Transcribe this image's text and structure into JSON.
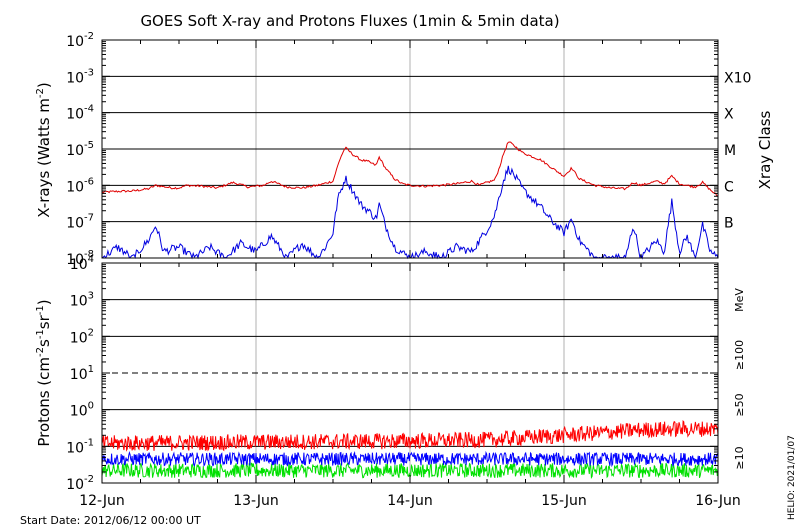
{
  "title": "GOES Soft X-ray and Protons Fluxes   (1min & 5min data)",
  "start_date": "Start Date: 2012/06/12 00:00 UT",
  "credit": "HELIO: 2021/01/07",
  "colors": {
    "xray_long": "#e00000",
    "xray_short": "#0000e0",
    "proton_10": "#ff0000",
    "proton_50": "#0000ff",
    "proton_100": "#00e000",
    "grid_vertical": "#b0b0b0",
    "grid_horizontal": "#000000"
  },
  "chart_data": [
    {
      "type": "line",
      "panel": "xray",
      "ylabel": "X-rays (Watts m^-2)",
      "yscale": "log",
      "ylim": [
        1e-08,
        0.01
      ],
      "y_ticks": [
        {
          "base": "10",
          "exp": "-8"
        },
        {
          "base": "10",
          "exp": "-7"
        },
        {
          "base": "10",
          "exp": "-6"
        },
        {
          "base": "10",
          "exp": "-5"
        },
        {
          "base": "10",
          "exp": "-4"
        },
        {
          "base": "10",
          "exp": "-3"
        },
        {
          "base": "10",
          "exp": "-2"
        }
      ],
      "right_axis_title": "Xray Class",
      "right_labels": [
        {
          "label": "B",
          "value": 1e-07
        },
        {
          "label": "C",
          "value": 1e-06
        },
        {
          "label": "M",
          "value": 1e-05
        },
        {
          "label": "X",
          "value": 0.0001
        },
        {
          "label": "X10",
          "value": 0.001
        }
      ],
      "x_categories": [
        "12-Jun",
        "13-Jun",
        "14-Jun",
        "15-Jun",
        "16-Jun"
      ],
      "x_unit": "day offset from 2012-06-12 00:00 UT",
      "series": [
        {
          "key": "long",
          "points": [
            [
              0.0,
              6.5e-07
            ],
            [
              0.1,
              6.8e-07
            ],
            [
              0.2,
              7e-07
            ],
            [
              0.3,
              8e-07
            ],
            [
              0.35,
              1e-06
            ],
            [
              0.45,
              8.5e-07
            ],
            [
              0.5,
              8.5e-07
            ],
            [
              0.55,
              1e-06
            ],
            [
              0.65,
              9.5e-07
            ],
            [
              0.75,
              8.5e-07
            ],
            [
              0.85,
              1.2e-06
            ],
            [
              0.95,
              9e-07
            ],
            [
              1.05,
              1e-06
            ],
            [
              1.1,
              1.3e-06
            ],
            [
              1.2,
              9e-07
            ],
            [
              1.3,
              8.5e-07
            ],
            [
              1.4,
              1e-06
            ],
            [
              1.5,
              1.3e-06
            ],
            [
              1.52,
              2.5e-06
            ],
            [
              1.55,
              6e-06
            ],
            [
              1.58,
              1.1e-05
            ],
            [
              1.63,
              7e-06
            ],
            [
              1.68,
              5e-06
            ],
            [
              1.73,
              4.5e-06
            ],
            [
              1.78,
              3.5e-06
            ],
            [
              1.8,
              6e-06
            ],
            [
              1.84,
              3e-06
            ],
            [
              1.9,
              1.5e-06
            ],
            [
              1.95,
              1.1e-06
            ],
            [
              2.0,
              1e-06
            ],
            [
              2.1,
              9.5e-07
            ],
            [
              2.2,
              1e-06
            ],
            [
              2.3,
              1.1e-06
            ],
            [
              2.4,
              1.3e-06
            ],
            [
              2.45,
              1e-06
            ],
            [
              2.5,
              1.2e-06
            ],
            [
              2.55,
              1.4e-06
            ],
            [
              2.58,
              3e-06
            ],
            [
              2.61,
              8e-06
            ],
            [
              2.64,
              1.6e-05
            ],
            [
              2.68,
              1.2e-05
            ],
            [
              2.73,
              8e-06
            ],
            [
              2.8,
              6e-06
            ],
            [
              2.85,
              5e-06
            ],
            [
              2.9,
              3.5e-06
            ],
            [
              2.95,
              2.5e-06
            ],
            [
              3.0,
              1.8e-06
            ],
            [
              3.05,
              3e-06
            ],
            [
              3.1,
              1.5e-06
            ],
            [
              3.2,
              1e-06
            ],
            [
              3.3,
              8.5e-07
            ],
            [
              3.4,
              8e-07
            ],
            [
              3.45,
              1.2e-06
            ],
            [
              3.5,
              1e-06
            ],
            [
              3.6,
              1.3e-06
            ],
            [
              3.65,
              1.1e-06
            ],
            [
              3.7,
              1.8e-06
            ],
            [
              3.75,
              1.1e-06
            ],
            [
              3.8,
              1e-06
            ],
            [
              3.85,
              9e-07
            ],
            [
              3.9,
              1.2e-06
            ],
            [
              3.95,
              7.5e-07
            ],
            [
              4.0,
              5e-07
            ]
          ]
        },
        {
          "key": "short",
          "points": [
            [
              0.0,
              1e-08
            ],
            [
              0.1,
              2e-08
            ],
            [
              0.2,
              1e-08
            ],
            [
              0.3,
              3e-08
            ],
            [
              0.35,
              8e-08
            ],
            [
              0.4,
              1.5e-08
            ],
            [
              0.5,
              2e-08
            ],
            [
              0.6,
              1e-08
            ],
            [
              0.7,
              2e-08
            ],
            [
              0.8,
              1e-08
            ],
            [
              0.9,
              2.5e-08
            ],
            [
              1.0,
              1.5e-08
            ],
            [
              1.1,
              4e-08
            ],
            [
              1.2,
              1e-08
            ],
            [
              1.3,
              2.5e-08
            ],
            [
              1.4,
              1e-08
            ],
            [
              1.45,
              2e-08
            ],
            [
              1.5,
              5e-08
            ],
            [
              1.53,
              4e-07
            ],
            [
              1.56,
              9e-07
            ],
            [
              1.58,
              1.6e-06
            ],
            [
              1.63,
              7e-07
            ],
            [
              1.68,
              3e-07
            ],
            [
              1.73,
              2e-07
            ],
            [
              1.78,
              1.2e-07
            ],
            [
              1.8,
              3e-07
            ],
            [
              1.84,
              8e-08
            ],
            [
              1.9,
              2e-08
            ],
            [
              2.0,
              1e-08
            ],
            [
              2.1,
              1.5e-08
            ],
            [
              2.2,
              1e-08
            ],
            [
              2.3,
              2e-08
            ],
            [
              2.4,
              1.5e-08
            ],
            [
              2.5,
              6e-08
            ],
            [
              2.55,
              1.5e-07
            ],
            [
              2.58,
              5e-07
            ],
            [
              2.61,
              1.5e-06
            ],
            [
              2.64,
              3e-06
            ],
            [
              2.68,
              1.8e-06
            ],
            [
              2.73,
              8e-07
            ],
            [
              2.8,
              4e-07
            ],
            [
              2.85,
              2.5e-07
            ],
            [
              2.9,
              1.3e-07
            ],
            [
              2.95,
              8e-08
            ],
            [
              3.0,
              5e-08
            ],
            [
              3.05,
              1.2e-07
            ],
            [
              3.1,
              3e-08
            ],
            [
              3.2,
              1e-08
            ],
            [
              3.4,
              1e-08
            ],
            [
              3.45,
              8e-08
            ],
            [
              3.5,
              1e-08
            ],
            [
              3.6,
              3e-08
            ],
            [
              3.65,
              1.5e-08
            ],
            [
              3.7,
              3.5e-07
            ],
            [
              3.75,
              1.5e-08
            ],
            [
              3.8,
              4e-08
            ],
            [
              3.85,
              1e-08
            ],
            [
              3.9,
              8e-08
            ],
            [
              3.95,
              1.5e-08
            ],
            [
              4.0,
              1e-08
            ]
          ]
        }
      ]
    },
    {
      "type": "line",
      "panel": "protons",
      "ylabel": "Protons (cm^-2 s^-1 sr^-1)",
      "yscale": "log",
      "ylim": [
        0.01,
        10000
      ],
      "y_ticks": [
        {
          "base": "10",
          "exp": "-2"
        },
        {
          "base": "10",
          "exp": "-1"
        },
        {
          "base": "10",
          "exp": "0"
        },
        {
          "base": "10",
          "exp": "1"
        },
        {
          "base": "10",
          "exp": "2"
        },
        {
          "base": "10",
          "exp": "3"
        },
        {
          "base": "10",
          "exp": "4"
        }
      ],
      "threshold_line": 10,
      "right_labels": [
        {
          "label": "MeV",
          "color": "#000000"
        },
        {
          "label": "≥100",
          "color": "#00c000"
        },
        {
          "label": "≥50",
          "color": "#0000ff"
        },
        {
          "label": "≥10",
          "color": "#ff0000"
        }
      ],
      "x_categories": [
        "12-Jun",
        "13-Jun",
        "14-Jun",
        "15-Jun",
        "16-Jun"
      ],
      "series": [
        {
          "key": "p10",
          "points": [
            [
              0.0,
              0.12
            ],
            [
              1.0,
              0.13
            ],
            [
              2.0,
              0.14
            ],
            [
              2.5,
              0.15
            ],
            [
              3.0,
              0.2
            ],
            [
              3.5,
              0.28
            ],
            [
              3.75,
              0.3
            ],
            [
              4.0,
              0.3
            ]
          ]
        },
        {
          "key": "p50",
          "points": [
            [
              0.0,
              0.045
            ],
            [
              1.0,
              0.045
            ],
            [
              2.0,
              0.045
            ],
            [
              3.0,
              0.045
            ],
            [
              4.0,
              0.045
            ]
          ]
        },
        {
          "key": "p100",
          "points": [
            [
              0.0,
              0.022
            ],
            [
              1.0,
              0.022
            ],
            [
              2.0,
              0.022
            ],
            [
              3.0,
              0.022
            ],
            [
              4.0,
              0.022
            ]
          ]
        }
      ]
    }
  ]
}
